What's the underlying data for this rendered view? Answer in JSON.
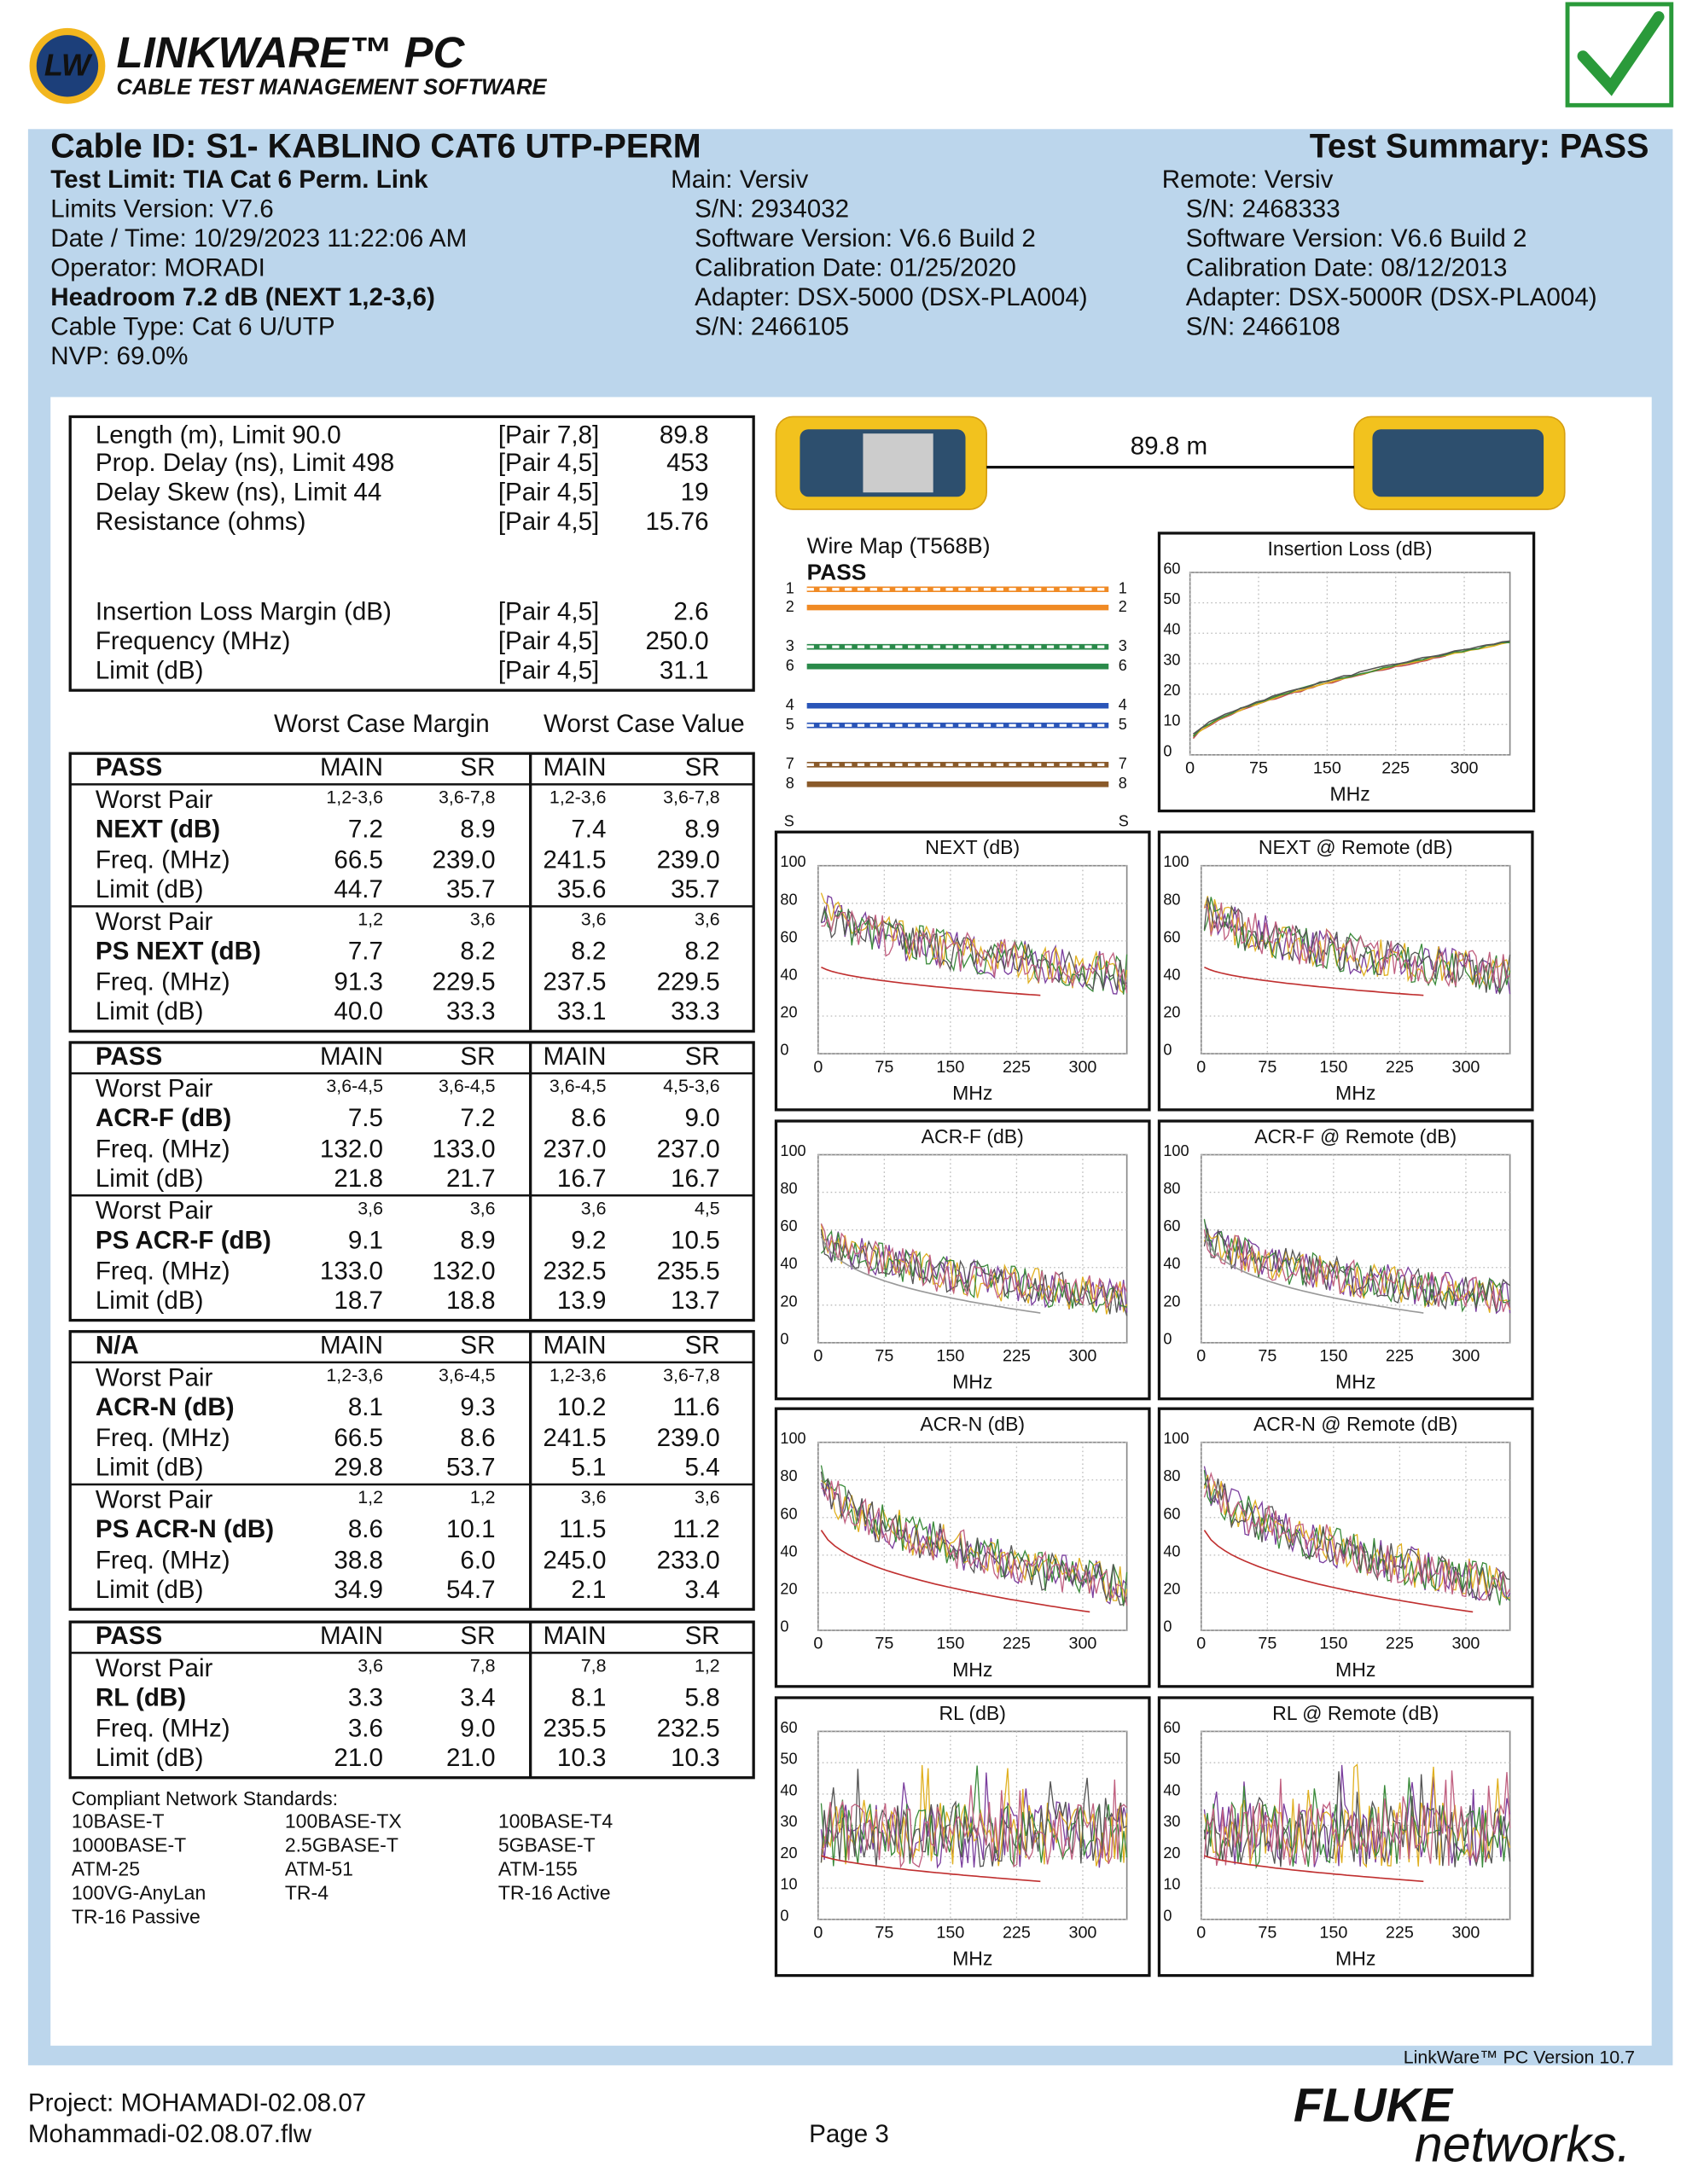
{
  "header": {
    "logo": "LW",
    "product": "LINKWARE™ PC",
    "subtitle": "CABLE TEST MANAGEMENT SOFTWARE"
  },
  "summary": {
    "cable_id": "Cable ID: S1- KABLINO CAT6 UTP-PERM",
    "test_summary": "Test Summary: PASS",
    "left": [
      "Test Limit: TIA Cat 6 Perm. Link",
      "Limits Version: V7.6",
      "Date / Time: 10/29/2023  11:22:06 AM",
      "Operator: MORADI",
      "Headroom 7.2 dB (NEXT 1,2-3,6)",
      "Cable Type: Cat 6 U/UTP",
      "NVP: 69.0%"
    ],
    "main": [
      "Main: Versiv",
      "S/N: 2934032",
      "Software Version: V6.6 Build 2",
      "Calibration Date: 01/25/2020",
      "Adapter: DSX-5000 (DSX-PLA004)",
      "S/N: 2466105"
    ],
    "remote": [
      "Remote: Versiv",
      "S/N: 2468333",
      "Software Version: V6.6 Build 2",
      "Calibration Date: 08/12/2013",
      "Adapter: DSX-5000R (DSX-PLA004)",
      "S/N: 2466108"
    ]
  },
  "measurements": [
    [
      "Length (m), Limit 90.0",
      "[Pair 7,8]",
      "89.8"
    ],
    [
      "Prop. Delay (ns), Limit 498",
      "[Pair 4,5]",
      "453"
    ],
    [
      "Delay Skew (ns), Limit 44",
      "[Pair 4,5]",
      "19"
    ],
    [
      "Resistance (ohms)",
      "[Pair 4,5]",
      "15.76"
    ],
    [
      "Insertion Loss Margin (dB)",
      "[Pair 4,5]",
      "2.6"
    ],
    [
      "Frequency (MHz)",
      "[Pair 4,5]",
      "250.0"
    ],
    [
      "Limit (dB)",
      "[Pair 4,5]",
      "31.1"
    ]
  ],
  "table_headers": [
    "Worst Case Margin",
    "Worst Case Value"
  ],
  "tables": [
    {
      "header": [
        "PASS",
        "MAIN",
        "SR",
        "MAIN",
        "SR"
      ],
      "groups": [
        [
          [
            "Worst Pair",
            "1,2-3,6",
            "3,6-7,8",
            "1,2-3,6",
            "3,6-7,8"
          ],
          [
            "NEXT (dB)",
            "7.2",
            "8.9",
            "7.4",
            "8.9"
          ],
          [
            "Freq. (MHz)",
            "66.5",
            "239.0",
            "241.5",
            "239.0"
          ],
          [
            "Limit (dB)",
            "44.7",
            "35.7",
            "35.6",
            "35.7"
          ]
        ],
        [
          [
            "Worst Pair",
            "1,2",
            "3,6",
            "3,6",
            "3,6"
          ],
          [
            "PS NEXT (dB)",
            "7.7",
            "8.2",
            "8.2",
            "8.2"
          ],
          [
            "Freq. (MHz)",
            "91.3",
            "229.5",
            "237.5",
            "229.5"
          ],
          [
            "Limit (dB)",
            "40.0",
            "33.3",
            "33.1",
            "33.3"
          ]
        ]
      ]
    },
    {
      "header": [
        "PASS",
        "MAIN",
        "SR",
        "MAIN",
        "SR"
      ],
      "groups": [
        [
          [
            "Worst Pair",
            "3,6-4,5",
            "3,6-4,5",
            "3,6-4,5",
            "4,5-3,6"
          ],
          [
            "ACR-F (dB)",
            "7.5",
            "7.2",
            "8.6",
            "9.0"
          ],
          [
            "Freq. (MHz)",
            "132.0",
            "133.0",
            "237.0",
            "237.0"
          ],
          [
            "Limit (dB)",
            "21.8",
            "21.7",
            "16.7",
            "16.7"
          ]
        ],
        [
          [
            "Worst Pair",
            "3,6",
            "3,6",
            "3,6",
            "4,5"
          ],
          [
            "PS ACR-F (dB)",
            "9.1",
            "8.9",
            "9.2",
            "10.5"
          ],
          [
            "Freq. (MHz)",
            "133.0",
            "132.0",
            "232.5",
            "235.5"
          ],
          [
            "Limit (dB)",
            "18.7",
            "18.8",
            "13.9",
            "13.7"
          ]
        ]
      ]
    },
    {
      "header": [
        "N/A",
        "MAIN",
        "SR",
        "MAIN",
        "SR"
      ],
      "groups": [
        [
          [
            "Worst Pair",
            "1,2-3,6",
            "3,6-4,5",
            "1,2-3,6",
            "3,6-7,8"
          ],
          [
            "ACR-N (dB)",
            "8.1",
            "9.3",
            "10.2",
            "11.6"
          ],
          [
            "Freq. (MHz)",
            "66.5",
            "8.6",
            "241.5",
            "239.0"
          ],
          [
            "Limit (dB)",
            "29.8",
            "53.7",
            "5.1",
            "5.4"
          ]
        ],
        [
          [
            "Worst Pair",
            "1,2",
            "1,2",
            "3,6",
            "3,6"
          ],
          [
            "PS ACR-N (dB)",
            "8.6",
            "10.1",
            "11.5",
            "11.2"
          ],
          [
            "Freq. (MHz)",
            "38.8",
            "6.0",
            "245.0",
            "233.0"
          ],
          [
            "Limit (dB)",
            "34.9",
            "54.7",
            "2.1",
            "3.4"
          ]
        ]
      ]
    },
    {
      "header": [
        "PASS",
        "MAIN",
        "SR",
        "MAIN",
        "SR"
      ],
      "groups": [
        [
          [
            "Worst Pair",
            "3,6",
            "7,8",
            "7,8",
            "1,2"
          ],
          [
            "RL (dB)",
            "3.3",
            "3.4",
            "8.1",
            "5.8"
          ],
          [
            "Freq. (MHz)",
            "3.6",
            "9.0",
            "235.5",
            "232.5"
          ],
          [
            "Limit (dB)",
            "21.0",
            "21.0",
            "10.3",
            "10.3"
          ]
        ]
      ]
    }
  ],
  "standards": {
    "title": "Compliant Network Standards:",
    "items": [
      "10BASE-T",
      "100BASE-TX",
      "100BASE-T4",
      "1000BASE-T",
      "2.5GBASE-T",
      "5GBASE-T",
      "ATM-25",
      "ATM-51",
      "ATM-155",
      "100VG-AnyLan",
      "TR-4",
      "TR-16 Active",
      "TR-16 Passive"
    ]
  },
  "wiremap": {
    "length": "89.8 m",
    "title": "Wire Map (T568B)",
    "status": "PASS",
    "pins": [
      "1",
      "2",
      "3",
      "6",
      "4",
      "5",
      "7",
      "8"
    ],
    "shield": "S"
  },
  "charts": [
    {
      "title": "Insertion Loss (dB)",
      "xlabel": "MHz",
      "xlim": [
        0,
        350
      ],
      "xticks": [
        0,
        75,
        150,
        225,
        300
      ],
      "ylim": [
        0,
        60
      ],
      "yticks": [
        0,
        10,
        20,
        30,
        40,
        50,
        60
      ]
    },
    {
      "title": "NEXT (dB)",
      "xlabel": "MHz",
      "xlim": [
        0,
        350
      ],
      "xticks": [
        0,
        75,
        150,
        225,
        300
      ],
      "ylim": [
        0,
        100
      ],
      "yticks": [
        0,
        20,
        40,
        60,
        80,
        100
      ]
    },
    {
      "title": "NEXT @ Remote (dB)",
      "xlabel": "MHz",
      "xlim": [
        0,
        350
      ],
      "xticks": [
        0,
        75,
        150,
        225,
        300
      ],
      "ylim": [
        0,
        100
      ],
      "yticks": [
        0,
        20,
        40,
        60,
        80,
        100
      ]
    },
    {
      "title": "ACR-F (dB)",
      "xlabel": "MHz",
      "xlim": [
        0,
        350
      ],
      "xticks": [
        0,
        75,
        150,
        225,
        300
      ],
      "ylim": [
        0,
        100
      ],
      "yticks": [
        0,
        20,
        40,
        60,
        80,
        100
      ]
    },
    {
      "title": "ACR-F @ Remote (dB)",
      "xlabel": "MHz",
      "xlim": [
        0,
        350
      ],
      "xticks": [
        0,
        75,
        150,
        225,
        300
      ],
      "ylim": [
        0,
        100
      ],
      "yticks": [
        0,
        20,
        40,
        60,
        80,
        100
      ]
    },
    {
      "title": "ACR-N (dB)",
      "xlabel": "MHz",
      "xlim": [
        0,
        350
      ],
      "xticks": [
        0,
        75,
        150,
        225,
        300
      ],
      "ylim": [
        0,
        100
      ],
      "yticks": [
        0,
        20,
        40,
        60,
        80,
        100
      ]
    },
    {
      "title": "ACR-N @ Remote (dB)",
      "xlabel": "MHz",
      "xlim": [
        0,
        350
      ],
      "xticks": [
        0,
        75,
        150,
        225,
        300
      ],
      "ylim": [
        0,
        100
      ],
      "yticks": [
        0,
        20,
        40,
        60,
        80,
        100
      ]
    },
    {
      "title": "RL (dB)",
      "xlabel": "MHz",
      "xlim": [
        0,
        350
      ],
      "xticks": [
        0,
        75,
        150,
        225,
        300
      ],
      "ylim": [
        0,
        60
      ],
      "yticks": [
        0,
        10,
        20,
        30,
        40,
        50,
        60
      ]
    },
    {
      "title": "RL @ Remote (dB)",
      "xlabel": "MHz",
      "xlim": [
        0,
        350
      ],
      "xticks": [
        0,
        75,
        150,
        225,
        300
      ],
      "ylim": [
        0,
        60
      ],
      "yticks": [
        0,
        10,
        20,
        30,
        40,
        50,
        60
      ]
    }
  ],
  "footer": {
    "version": "LinkWare™ PC Version 10.7",
    "project": "Project: MOHAMADI-02.08.07",
    "file": "Mohammadi-02.08.07.flw",
    "page": "Page 3",
    "brand": "FLUKE",
    "brand_sub": "networks."
  }
}
